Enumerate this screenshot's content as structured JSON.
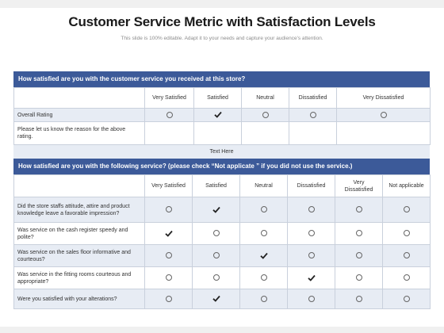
{
  "title": "Customer Service Metric with Satisfaction Levels",
  "subtitle": "This slide is 100% editable. Adapt it to your needs and capture your audience's attention.",
  "section1": {
    "question": "How satisfied are you with the customer service you received at this store?",
    "columns": [
      "Very Satisfied",
      "Satisfied",
      "Neutral",
      "Dissatisfied",
      "Very Dissatisfied"
    ],
    "rows": [
      {
        "label": "Overall Rating",
        "selected": 1
      },
      {
        "label": "Please let us know the reason for the above rating.",
        "selected": -1
      }
    ]
  },
  "middle_text": "Text Here",
  "section2": {
    "question": "How satisfied are you with the following service? (please check “Not applicate ” if you did not use the service.)",
    "columns": [
      "Very Satisfied",
      "Satisfied",
      "Neutral",
      "Dissatisfied",
      "Very Dissatisfied",
      "Not applicable"
    ],
    "rows": [
      {
        "label": "Did the store staffs attitude, attire and product knowledge leave a favorable impression?",
        "selected": 1
      },
      {
        "label": "Was service on the cash register speedy and polite?",
        "selected": 0
      },
      {
        "label": "Was service on the sales floor informative and courteous?",
        "selected": 2
      },
      {
        "label": "Was service in the fitting rooms courteous and appropriate?",
        "selected": 3
      },
      {
        "label": "Were you satisfied with your alterations?",
        "selected": 1
      }
    ]
  },
  "icons": {
    "radio": "radio-circle-icon",
    "check": "checkmark-icon"
  },
  "colors": {
    "header": "#3c5a99",
    "row_shade": "#e7ecf4",
    "border": "#c9d0dc"
  }
}
